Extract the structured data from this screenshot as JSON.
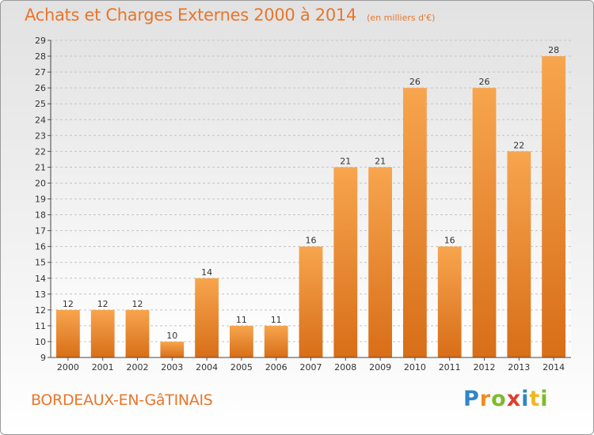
{
  "header": {
    "title": "Achats et Charges Externes 2000 à 2014",
    "unit": "(en milliers d'€)"
  },
  "footer": {
    "town": "BORDEAUX-EN-GâTINAIS",
    "logo": "Proxiti"
  },
  "colors": {
    "bar_top": "#f7a54e",
    "bar_bottom": "#d86e18",
    "title": "#e8762a",
    "text": "#333333"
  },
  "chart_data": {
    "type": "bar",
    "title": "Achats et Charges Externes 2000 à 2014",
    "subtitle": "(en milliers d'€)",
    "xlabel": "",
    "ylabel": "",
    "categories": [
      "2000",
      "2001",
      "2002",
      "2003",
      "2004",
      "2005",
      "2006",
      "2007",
      "2008",
      "2009",
      "2010",
      "2011",
      "2012",
      "2013",
      "2014"
    ],
    "values": [
      12,
      12,
      12,
      10,
      14,
      11,
      11,
      16,
      21,
      21,
      26,
      16,
      26,
      22,
      28
    ],
    "ylim": [
      9,
      29
    ],
    "yticks": [
      9,
      10,
      11,
      12,
      13,
      14,
      15,
      16,
      17,
      18,
      19,
      20,
      21,
      22,
      23,
      24,
      25,
      26,
      27,
      28,
      29
    ],
    "grid": true,
    "legend": "none"
  }
}
